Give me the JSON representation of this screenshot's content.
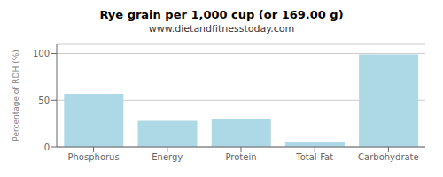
{
  "chart_data": {
    "type": "bar",
    "title": "Rye grain per 1,000 cup (or 169.00 g)",
    "subtitle": "www.dietandfitnesstoday.com",
    "categories": [
      "Phosphorus",
      "Energy",
      "Protein",
      "Total-Fat",
      "Carbohydrate"
    ],
    "values": [
      57,
      28,
      30,
      5,
      99
    ],
    "color": "#add8e6",
    "ylabel": "Percentage of RDH (%)",
    "ylim": [
      0,
      110
    ],
    "yticks": [
      0,
      50,
      100
    ],
    "grid": true
  }
}
